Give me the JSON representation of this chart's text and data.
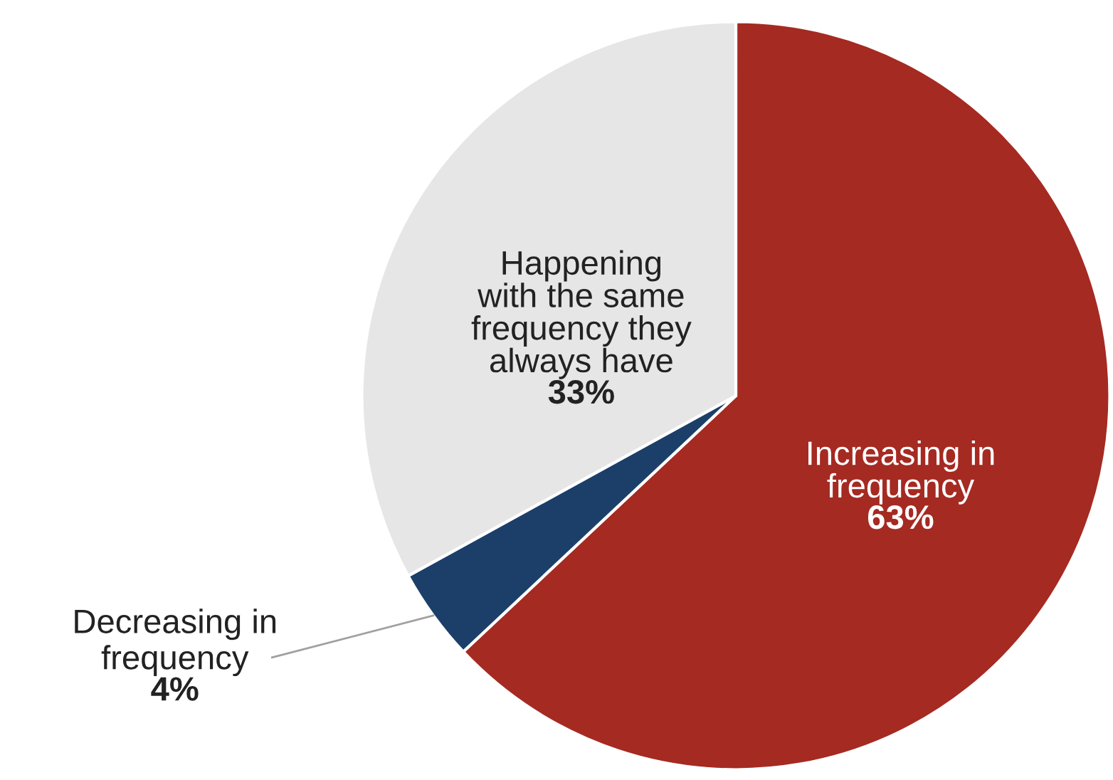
{
  "chart_data": {
    "type": "pie",
    "categories": [
      "Increasing in\nfrequency",
      "Decreasing in\nfrequency",
      "Happening\nwith the same\nfrequency they\nalways have"
    ],
    "values": [
      63,
      4,
      33
    ],
    "colors": [
      "#a52a22",
      "#1c3f6a",
      "#e6e6e6"
    ],
    "value_labels": [
      "63%",
      "4%",
      "33%"
    ],
    "legend": false
  }
}
